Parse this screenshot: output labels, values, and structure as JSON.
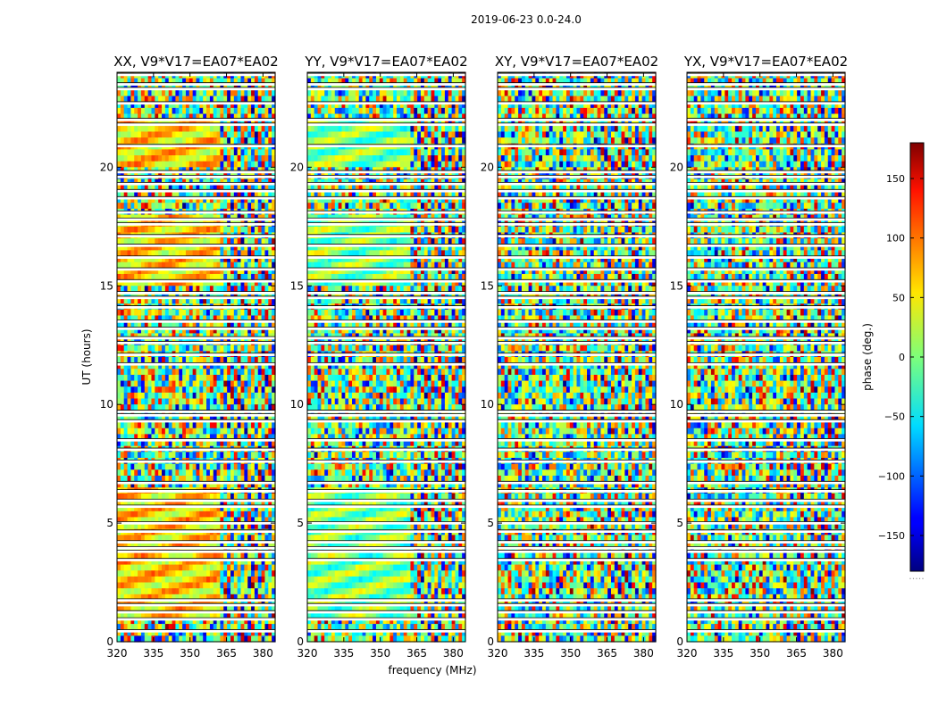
{
  "chart_data": {
    "type": "heatmap",
    "suptitle": "2019-06-23 0.0-24.0",
    "xlabel": "frequency (MHz)",
    "ylabel": "UT (hours)",
    "xlim": [
      320,
      385
    ],
    "ylim": [
      0,
      24
    ],
    "xticks": [
      320,
      335,
      350,
      365,
      380
    ],
    "yticks": [
      0,
      5,
      10,
      15,
      20
    ],
    "panels": [
      {
        "title": "XX, V9*V17=EA07*EA02",
        "pol": "XX"
      },
      {
        "title": "YY, V9*V17=EA07*EA02",
        "pol": "YY"
      },
      {
        "title": "XY, V9*V17=EA07*EA02",
        "pol": "XY"
      },
      {
        "title": "YX, V9*V17=EA07*EA02",
        "pol": "YX"
      }
    ],
    "colorbar": {
      "label": "phase (deg.)",
      "range": [
        -180,
        180
      ],
      "ticks": [
        -150,
        -100,
        -50,
        0,
        50,
        100,
        150
      ],
      "colormap": "jet",
      "footer": "....."
    },
    "gaps_ut": [
      0.45,
      0.95,
      1.25,
      1.55,
      1.75,
      3.45,
      3.8,
      3.95,
      4.2,
      4.65,
      5.0,
      5.7,
      5.95,
      6.35,
      6.7,
      7.6,
      8.1,
      8.5,
      9.3,
      9.55,
      9.7,
      11.7,
      12.1,
      12.6,
      12.8,
      13.2,
      13.5,
      14.1,
      14.5,
      14.7,
      15.2,
      15.7,
      16.2,
      16.7,
      17.1,
      17.6,
      17.8,
      18.1,
      18.7,
      19.0,
      19.3,
      19.6,
      19.8,
      20.9,
      21.8,
      22.0,
      22.7,
      23.3,
      23.5,
      23.9
    ]
  }
}
